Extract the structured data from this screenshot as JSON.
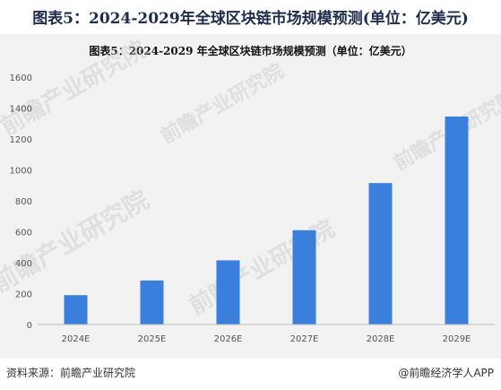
{
  "header": {
    "title": "图表5：2024-2029年全球区块链市场规模预测(单位：亿美元)"
  },
  "footer": {
    "source": "资料来源：前瞻产业研究院",
    "app": "@前瞻经济学人APP"
  },
  "watermark": {
    "text": "前瞻产业研究院"
  },
  "colors": {
    "bar": "#3a7fdc",
    "axis": "#bfbfbf",
    "panel": "#f2f2f2"
  },
  "chart_data": {
    "type": "bar",
    "title": "图表5：2024-2029 年全球区块链市场规模预测（单位：亿美元）",
    "categories": [
      "2024E",
      "2025E",
      "2026E",
      "2027E",
      "2028E",
      "2029E"
    ],
    "values": [
      190,
      285,
      415,
      610,
      915,
      1345
    ],
    "ylim": [
      0,
      1600
    ],
    "yticks": [
      0,
      200,
      400,
      600,
      800,
      1000,
      1200,
      1400,
      1600
    ],
    "xlabel": "",
    "ylabel": "",
    "grid": false,
    "legend": "none"
  }
}
